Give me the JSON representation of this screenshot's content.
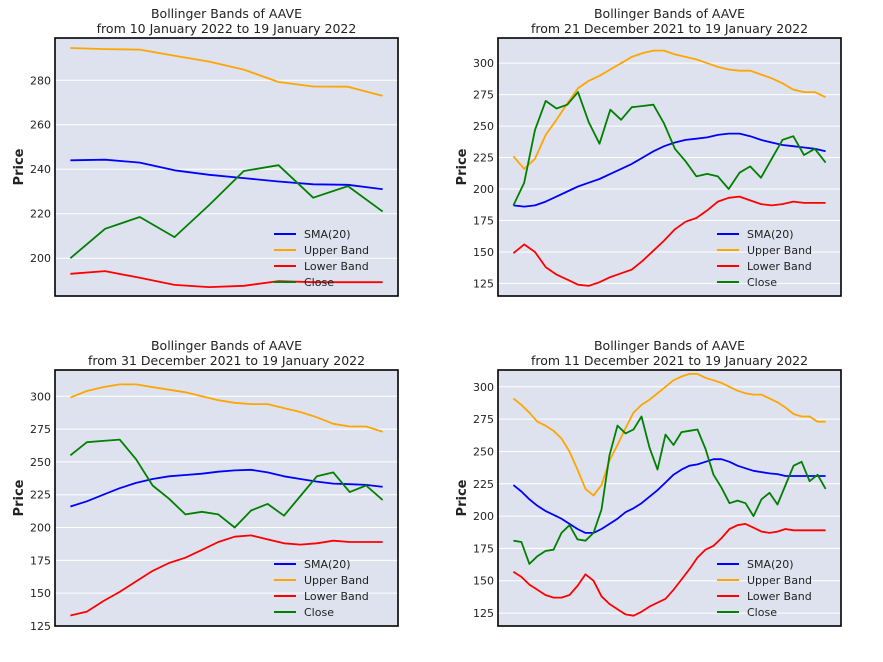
{
  "colors": {
    "sma": "#0000ff",
    "upper": "#ffa500",
    "lower": "#ff0000",
    "close": "#008000",
    "plot_background": "#dde2ee",
    "grid": "#ffffff",
    "frame": "#000000"
  },
  "chart_data": [
    {
      "type": "line",
      "title_lines": [
        "Bollinger Bands of AAVE",
        "from 10 January 2022 to 19 January 2022"
      ],
      "xlabel": "",
      "ylabel": "Price",
      "ylim": [
        183,
        299
      ],
      "yticks": [
        200,
        220,
        240,
        260,
        280
      ],
      "grid": true,
      "legend_position": "lower-right",
      "series": [
        {
          "name": "SMA(20)",
          "key": "sma",
          "x": [
            0,
            1,
            2,
            3,
            4,
            5,
            6,
            7,
            8,
            9
          ],
          "values": [
            244,
            244.3,
            243,
            239.5,
            237.5,
            236,
            234.5,
            233.2,
            233,
            231
          ]
        },
        {
          "name": "Upper Band",
          "key": "upper",
          "x": [
            0,
            1,
            2,
            3,
            4,
            5,
            6,
            7,
            8,
            9
          ],
          "values": [
            294.5,
            294,
            293.8,
            291,
            288.4,
            284.8,
            279.2,
            277.2,
            277.1,
            273
          ]
        },
        {
          "name": "Lower Band",
          "key": "lower",
          "x": [
            0,
            1,
            2,
            3,
            4,
            5,
            6,
            7,
            8,
            9
          ],
          "values": [
            193,
            194.2,
            191.2,
            188,
            187,
            187.6,
            189.7,
            189.2,
            189.2,
            189.2
          ]
        },
        {
          "name": "Close",
          "key": "close",
          "x": [
            0,
            1,
            2,
            3,
            4,
            5,
            6,
            7,
            8,
            9
          ],
          "values": [
            200,
            213.2,
            218.5,
            209.5,
            223.9,
            239.2,
            241.8,
            227.2,
            232.4,
            221
          ]
        }
      ]
    },
    {
      "type": "line",
      "title_lines": [
        "Bollinger Bands of AAVE",
        "from 21 December 2021 to 19 January 2022"
      ],
      "xlabel": "",
      "ylabel": "Price",
      "ylim": [
        115,
        320
      ],
      "yticks": [
        125,
        150,
        175,
        200,
        225,
        250,
        275,
        300
      ],
      "grid": true,
      "legend_position": "lower-right",
      "series": [
        {
          "name": "SMA(20)",
          "key": "sma",
          "x": [
            0,
            1,
            2,
            3,
            4,
            5,
            6,
            7,
            8,
            9,
            10,
            11,
            12,
            13,
            14,
            15,
            16,
            17,
            18,
            19,
            20,
            21,
            22,
            23,
            24,
            25,
            26,
            27,
            28,
            29
          ],
          "values": [
            187,
            186,
            187,
            190,
            194,
            198,
            202,
            205,
            208,
            212,
            216,
            220,
            225,
            230,
            234,
            237,
            239,
            240,
            241,
            243,
            244,
            244,
            242,
            239,
            237,
            235,
            234,
            233,
            232,
            230
          ]
        },
        {
          "name": "Upper Band",
          "key": "upper",
          "x": [
            0,
            1,
            2,
            3,
            4,
            5,
            6,
            7,
            8,
            9,
            10,
            11,
            12,
            13,
            14,
            15,
            16,
            17,
            18,
            19,
            20,
            21,
            22,
            23,
            24,
            25,
            26,
            27,
            28,
            29
          ],
          "values": [
            226,
            216,
            224,
            243,
            255,
            268,
            280,
            286,
            290,
            295,
            300,
            305,
            308,
            310,
            310,
            307,
            305,
            303,
            300,
            297,
            295,
            294,
            294,
            291,
            288,
            284,
            279,
            277,
            277,
            273
          ]
        },
        {
          "name": "Lower Band",
          "key": "lower",
          "x": [
            0,
            1,
            2,
            3,
            4,
            5,
            6,
            7,
            8,
            9,
            10,
            11,
            12,
            13,
            14,
            15,
            16,
            17,
            18,
            19,
            20,
            21,
            22,
            23,
            24,
            25,
            26,
            27,
            28,
            29
          ],
          "values": [
            149,
            156,
            150,
            138,
            132,
            128,
            124,
            123,
            126,
            130,
            133,
            136,
            143,
            151,
            159,
            168,
            174,
            177,
            183,
            190,
            193,
            194,
            191,
            188,
            187,
            188,
            190,
            189,
            189,
            189
          ]
        },
        {
          "name": "Close",
          "key": "close",
          "x": [
            0,
            1,
            2,
            3,
            4,
            5,
            6,
            7,
            8,
            9,
            10,
            11,
            12,
            13,
            14,
            15,
            16,
            17,
            18,
            19,
            20,
            21,
            22,
            23,
            24,
            25,
            26,
            27,
            28,
            29
          ],
          "values": [
            187,
            205,
            247,
            270,
            264,
            267,
            277,
            253,
            236,
            263,
            255,
            265,
            266,
            267,
            252,
            232,
            222,
            210,
            212,
            210,
            200,
            213,
            218,
            209,
            224,
            239,
            242,
            227,
            232,
            221
          ]
        }
      ]
    },
    {
      "type": "line",
      "title_lines": [
        "Bollinger Bands of AAVE",
        "from 31 December 2021 to 19 January 2022"
      ],
      "xlabel": "",
      "ylabel": "Price",
      "ylim": [
        125,
        320
      ],
      "yticks": [
        125,
        150,
        175,
        200,
        225,
        250,
        275,
        300
      ],
      "grid": true,
      "legend_position": "lower-right",
      "series": [
        {
          "name": "SMA(20)",
          "key": "sma",
          "x": [
            0,
            1,
            2,
            3,
            4,
            5,
            6,
            7,
            8,
            9,
            10,
            11,
            12,
            13,
            14,
            15,
            16,
            17,
            18,
            19
          ],
          "values": [
            216,
            220,
            225,
            230,
            234,
            237,
            239,
            240,
            241,
            242.5,
            243.5,
            244,
            242,
            239,
            237,
            235,
            233.5,
            233,
            232.5,
            231
          ]
        },
        {
          "name": "Upper Band",
          "key": "upper",
          "x": [
            0,
            1,
            2,
            3,
            4,
            5,
            6,
            7,
            8,
            9,
            10,
            11,
            12,
            13,
            14,
            15,
            16,
            17,
            18,
            19
          ],
          "values": [
            299,
            304,
            307,
            309,
            309,
            307,
            305,
            303,
            300,
            297,
            295,
            294,
            294,
            291,
            288,
            284,
            279,
            277,
            277,
            273
          ]
        },
        {
          "name": "Lower Band",
          "key": "lower",
          "x": [
            0,
            1,
            2,
            3,
            4,
            5,
            6,
            7,
            8,
            9,
            10,
            11,
            12,
            13,
            14,
            15,
            16,
            17,
            18,
            19
          ],
          "values": [
            133,
            136,
            144,
            151,
            159,
            167,
            173,
            177,
            183,
            189,
            193,
            194,
            191,
            188,
            187,
            188,
            190,
            189,
            189,
            189
          ]
        },
        {
          "name": "Close",
          "key": "close",
          "x": [
            0,
            1,
            2,
            3,
            4,
            5,
            6,
            7,
            8,
            9,
            10,
            11,
            12,
            13,
            14,
            15,
            16,
            17,
            18,
            19
          ],
          "values": [
            255,
            265,
            266,
            267,
            252,
            232,
            222,
            210,
            212,
            210,
            200,
            213,
            218,
            209,
            224,
            239,
            242,
            227,
            232,
            221
          ]
        }
      ]
    },
    {
      "type": "line",
      "title_lines": [
        "Bollinger Bands of AAVE",
        "from 11 December 2021 to 19 January 2022"
      ],
      "xlabel": "",
      "ylabel": "Price",
      "ylim": [
        115,
        313
      ],
      "yticks": [
        125,
        150,
        175,
        200,
        225,
        250,
        275,
        300
      ],
      "grid": true,
      "legend_position": "lower-right",
      "series": [
        {
          "name": "SMA(20)",
          "key": "sma",
          "x": [
            0,
            1,
            2,
            3,
            4,
            5,
            6,
            7,
            8,
            9,
            10,
            11,
            12,
            13,
            14,
            15,
            16,
            17,
            18,
            19,
            20,
            21,
            22,
            23,
            24,
            25,
            26,
            27,
            28,
            29,
            30,
            31,
            32,
            33,
            34,
            35,
            36,
            37,
            38,
            39
          ],
          "values": [
            224,
            219,
            213,
            208,
            204,
            201,
            198,
            194,
            190,
            187,
            187,
            190,
            194,
            198,
            203,
            206,
            210,
            215,
            220,
            226,
            232,
            236,
            239,
            240,
            242,
            244,
            244,
            242,
            239,
            237,
            235,
            234,
            233,
            232.5,
            231,
            231,
            231,
            231,
            231,
            231
          ]
        },
        {
          "name": "Upper Band",
          "key": "upper",
          "x": [
            0,
            1,
            2,
            3,
            4,
            5,
            6,
            7,
            8,
            9,
            10,
            11,
            12,
            13,
            14,
            15,
            16,
            17,
            18,
            19,
            20,
            21,
            22,
            23,
            24,
            25,
            26,
            27,
            28,
            29,
            30,
            31,
            32,
            33,
            34,
            35,
            36,
            37,
            38,
            39
          ],
          "values": [
            291,
            286,
            280,
            273,
            270,
            266,
            260,
            250,
            236,
            221,
            216,
            224,
            243,
            255,
            268,
            280,
            286,
            290,
            295,
            300,
            305,
            308,
            310,
            310,
            307,
            305,
            303,
            300,
            297,
            295,
            294,
            294,
            291,
            288,
            284,
            279,
            277,
            277,
            273,
            273
          ]
        },
        {
          "name": "Lower Band",
          "key": "lower",
          "x": [
            0,
            1,
            2,
            3,
            4,
            5,
            6,
            7,
            8,
            9,
            10,
            11,
            12,
            13,
            14,
            15,
            16,
            17,
            18,
            19,
            20,
            21,
            22,
            23,
            24,
            25,
            26,
            27,
            28,
            29,
            30,
            31,
            32,
            33,
            34,
            35,
            36,
            37,
            38,
            39
          ],
          "values": [
            157,
            153,
            147,
            143,
            139,
            137,
            137,
            139,
            146,
            155,
            150,
            138,
            132,
            128,
            124,
            123,
            126,
            130,
            133,
            136,
            143,
            151,
            159,
            168,
            174,
            177,
            183,
            190,
            193,
            194,
            191,
            188,
            187,
            188,
            190,
            189,
            189,
            189,
            189,
            189
          ]
        },
        {
          "name": "Close",
          "key": "close",
          "x": [
            0,
            1,
            2,
            3,
            4,
            5,
            6,
            7,
            8,
            9,
            10,
            11,
            12,
            13,
            14,
            15,
            16,
            17,
            18,
            19,
            20,
            21,
            22,
            23,
            24,
            25,
            26,
            27,
            28,
            29,
            30,
            31,
            32,
            33,
            34,
            35,
            36,
            37,
            38,
            39
          ],
          "values": [
            181,
            180,
            163,
            169,
            173,
            174,
            187,
            193,
            182,
            181,
            187,
            205,
            247,
            270,
            264,
            267,
            277,
            253,
            236,
            263,
            255,
            265,
            266,
            267,
            252,
            232,
            222,
            210,
            212,
            210,
            200,
            213,
            218,
            209,
            224,
            239,
            242,
            227,
            232,
            221
          ]
        }
      ]
    }
  ]
}
